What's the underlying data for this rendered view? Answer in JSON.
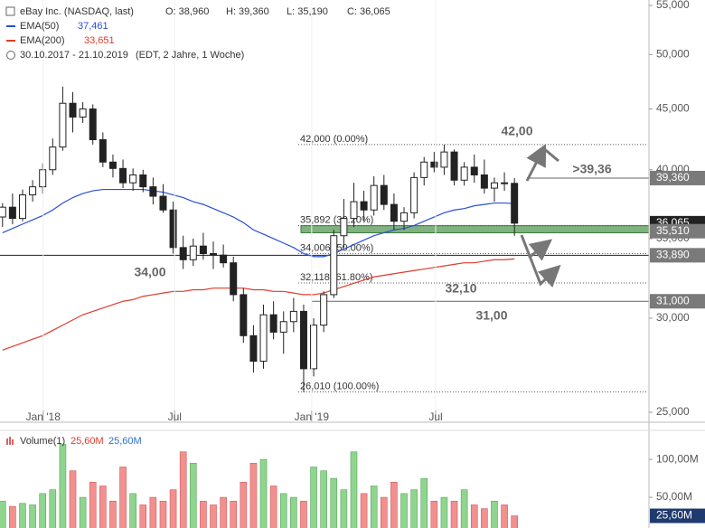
{
  "chart_data": {
    "type": "candlestick",
    "header": {
      "title": "eBay Inc. (NASDAQ, last)",
      "ohlc": [
        "O: 38,960",
        "H: 39,360",
        "L: 35,190",
        "C: 36,065"
      ],
      "range": "30.10.2017 - 21.10.2019",
      "range_note": "(EDT, 2 Jahre, 1 Woche)"
    },
    "log_scale": true,
    "xlim": [
      -0.5,
      128.8
    ],
    "xticks": [
      {
        "value": 8.1,
        "label": "Jan '18"
      },
      {
        "value": 34.3,
        "label": "Jul"
      },
      {
        "value": 61.6,
        "label": "Jan '19"
      },
      {
        "value": 86.3,
        "label": "Jul"
      }
    ],
    "ylim": [
      25,
      55
    ],
    "yticks": [
      {
        "value": 25,
        "label": "25,000"
      },
      {
        "value": 30,
        "label": "30,000"
      },
      {
        "value": 35,
        "label": "35,000"
      },
      {
        "value": 40,
        "label": "40,000"
      },
      {
        "value": 45,
        "label": "45,000"
      },
      {
        "value": 50,
        "label": "50,000"
      },
      {
        "value": 55,
        "label": "55,000"
      }
    ],
    "candles": {
      "x": [
        0,
        2,
        4,
        6,
        8,
        10,
        12,
        14,
        16,
        18,
        20,
        22,
        24,
        26,
        28,
        30,
        32,
        34,
        36,
        38,
        40,
        42,
        44,
        46,
        48,
        50,
        52,
        54,
        56,
        58,
        60,
        62,
        64,
        66,
        68,
        70,
        72,
        74,
        76,
        78,
        80,
        82,
        84,
        86,
        88,
        90,
        92,
        94,
        96,
        98,
        100,
        102
      ],
      "open": [
        36.5,
        37.2,
        36.4,
        38.1,
        38.7,
        40.0,
        41.8,
        45.5,
        44.3,
        45.0,
        42.4,
        40.6,
        40.1,
        39.0,
        39.6,
        38.7,
        38.0,
        37.0,
        34.4,
        33.6,
        34.5,
        34.0,
        33.9,
        33.4,
        31.4,
        29.0,
        27.6,
        30.2,
        29.2,
        29.8,
        30.4,
        27.2,
        29.6,
        31.4,
        35.2,
        36.4,
        37.6,
        37.0,
        38.8,
        37.4,
        36.2,
        36.8,
        39.4,
        40.6,
        40.2,
        41.4,
        39.2,
        40.2,
        39.6,
        38.6,
        39.0,
        38.96
      ],
      "high": [
        37.5,
        38.2,
        38.5,
        39.2,
        40.5,
        42.5,
        47.0,
        46.5,
        45.6,
        45.4,
        43.0,
        41.2,
        40.8,
        40.1,
        40.0,
        39.4,
        38.9,
        37.6,
        35.2,
        35.0,
        35.4,
        34.8,
        34.6,
        33.8,
        31.8,
        29.6,
        30.8,
        31.0,
        30.4,
        31.2,
        30.8,
        30.0,
        31.6,
        35.6,
        37.8,
        39.0,
        38.4,
        39.5,
        39.6,
        38.2,
        37.2,
        39.8,
        41.0,
        41.4,
        42.0,
        41.6,
        40.6,
        41.2,
        40.8,
        39.4,
        39.8,
        39.36
      ],
      "low": [
        35.8,
        36.0,
        36.2,
        37.6,
        38.2,
        39.6,
        41.5,
        43.0,
        43.8,
        42.0,
        40.2,
        39.4,
        38.6,
        38.4,
        38.3,
        37.4,
        36.8,
        34.0,
        33.0,
        33.2,
        33.6,
        33.0,
        33.1,
        31.0,
        28.6,
        27.0,
        27.2,
        28.8,
        28.0,
        29.2,
        26.0,
        26.8,
        29.2,
        31.2,
        34.4,
        35.8,
        36.2,
        36.6,
        37.0,
        35.6,
        35.6,
        36.4,
        38.8,
        39.8,
        39.6,
        38.8,
        38.8,
        39.0,
        38.2,
        37.6,
        38.4,
        35.19
      ],
      "close": [
        37.2,
        36.4,
        38.1,
        38.7,
        40.0,
        41.8,
        45.5,
        44.3,
        45.0,
        42.4,
        40.6,
        40.1,
        39.0,
        39.6,
        38.7,
        38.0,
        37.0,
        34.4,
        33.6,
        34.5,
        34.0,
        33.9,
        33.4,
        31.4,
        29.0,
        27.6,
        30.2,
        29.2,
        29.8,
        30.4,
        27.2,
        29.6,
        31.4,
        35.2,
        36.4,
        37.6,
        37.0,
        38.8,
        37.4,
        36.2,
        36.8,
        39.4,
        40.6,
        40.2,
        41.4,
        39.2,
        40.2,
        39.6,
        38.6,
        39.0,
        38.96,
        36.065
      ]
    },
    "series": [
      {
        "name": "EMA(50)",
        "color": "#2a4fd6",
        "last_label": "37,461",
        "values": [
          35.4,
          35.7,
          36.0,
          36.3,
          36.6,
          37.0,
          37.5,
          37.9,
          38.2,
          38.4,
          38.5,
          38.5,
          38.5,
          38.5,
          38.5,
          38.4,
          38.3,
          38.1,
          37.9,
          37.6,
          37.4,
          37.1,
          36.8,
          36.5,
          36.1,
          35.6,
          35.3,
          35.0,
          34.7,
          34.4,
          34.0,
          33.8,
          33.8,
          34.0,
          34.3,
          34.6,
          34.9,
          35.2,
          35.4,
          35.6,
          35.7,
          35.9,
          36.2,
          36.5,
          36.8,
          37.0,
          37.1,
          37.3,
          37.4,
          37.5,
          37.5,
          37.461
        ]
      },
      {
        "name": "EMA(200)",
        "color": "#e03b2c",
        "last_label": "33,651",
        "values": [
          28.2,
          28.4,
          28.6,
          28.8,
          29.0,
          29.3,
          29.6,
          29.9,
          30.2,
          30.4,
          30.6,
          30.8,
          31.0,
          31.1,
          31.3,
          31.4,
          31.5,
          31.6,
          31.6,
          31.7,
          31.7,
          31.8,
          31.8,
          31.8,
          31.8,
          31.7,
          31.7,
          31.6,
          31.6,
          31.5,
          31.4,
          31.4,
          31.5,
          31.7,
          31.9,
          32.1,
          32.3,
          32.5,
          32.6,
          32.7,
          32.8,
          32.9,
          33.0,
          33.1,
          33.2,
          33.3,
          33.4,
          33.4,
          33.5,
          33.6,
          33.6,
          33.651
        ]
      }
    ],
    "fib_levels": [
      {
        "value": 42.0,
        "label": "42,000 (0.00%)"
      },
      {
        "value": 35.892,
        "label": "35,892 (38.20%)"
      },
      {
        "value": 34.006,
        "label": "34,006 (50.00%)"
      },
      {
        "value": 32.118,
        "label": "32,118 (61.80%)"
      },
      {
        "value": 26.01,
        "label": "26,010 (100.00%)"
      }
    ],
    "zone": {
      "range": [
        35.4,
        35.892
      ],
      "color": "#6aa56a"
    },
    "price_markers": [
      {
        "value": 36.065,
        "label": "36,065",
        "color": "#222222"
      },
      {
        "value": 39.36,
        "label": "39,360",
        "color": "#7a7a7a"
      },
      {
        "value": 35.51,
        "label": "35,510",
        "color": "#7a7a7a"
      },
      {
        "value": 33.89,
        "label": "33,890",
        "color": "#7a7a7a"
      },
      {
        "value": 31.0,
        "label": "31,000",
        "color": "#7a7a7a"
      }
    ],
    "annotations": [
      "42,00",
      ">39,36",
      "34,00",
      "32,10",
      "31,00"
    ],
    "volume": {
      "name": "Volume(1)",
      "last_label": "25,60M",
      "avg_label": "25,60M",
      "ylim": [
        0,
        124
      ],
      "yticks": [
        {
          "value": 50,
          "label": "50,00M"
        },
        {
          "value": 100,
          "label": "100,00M"
        }
      ],
      "up_color": "#8fd48f",
      "down_color": "#f29090",
      "marker_color": "#1f3a6e",
      "values": [
        45,
        38,
        42,
        40,
        55,
        60,
        120,
        85,
        50,
        70,
        65,
        45,
        90,
        55,
        40,
        50,
        45,
        60,
        110,
        95,
        45,
        40,
        50,
        45,
        70,
        95,
        100,
        65,
        55,
        50,
        45,
        90,
        85,
        75,
        60,
        110,
        55,
        65,
        50,
        70,
        55,
        60,
        75,
        45,
        50,
        45,
        60,
        40,
        35,
        45,
        40,
        25.6
      ]
    }
  }
}
